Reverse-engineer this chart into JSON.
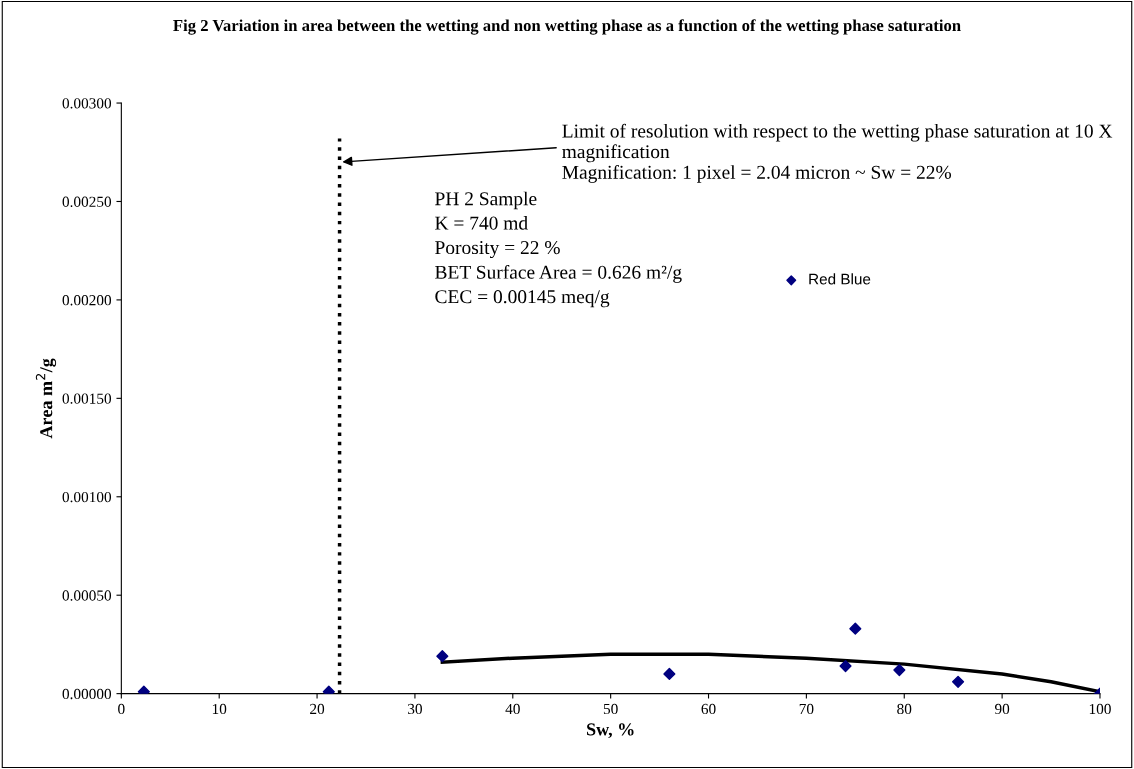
{
  "chart_data": {
    "type": "scatter",
    "title": "Fig 2 Variation in area between the wetting and non wetting phase as a function of the wetting phase saturation",
    "xlabel": "Sw, %",
    "ylabel": "Area m$^{2}$/g",
    "series": [
      {
        "name": "Red Blue",
        "color": "#000080",
        "marker": "diamond",
        "x": [
          2.3,
          21.2,
          32.8,
          56,
          74,
          75,
          79.5,
          85.5,
          100
        ],
        "values": [
          1e-05,
          1e-05,
          0.00019,
          0.0001,
          0.00014,
          0.00033,
          0.00012,
          6e-05,
          0
        ]
      },
      {
        "type": "line",
        "color": "#000000",
        "marker": "none",
        "x": [
          32.8,
          40,
          50,
          55,
          60,
          70,
          80,
          90,
          95,
          100
        ],
        "values": [
          0.00016,
          0.00018,
          0.0002,
          0.0002,
          0.0002,
          0.00018,
          0.00015,
          0.0001,
          6e-05,
          1e-05
        ]
      }
    ],
    "xlim": [
      0,
      100
    ],
    "xticks": [
      0,
      10,
      20,
      30,
      40,
      50,
      60,
      70,
      80,
      90,
      100
    ],
    "ylim": [
      0,
      0.003
    ],
    "yticks": [
      {
        "value": 0,
        "label": "0.00000"
      },
      {
        "value": 0.0005,
        "label": "0.00050"
      },
      {
        "value": 0.001,
        "label": "0.00100"
      },
      {
        "value": 0.0015,
        "label": "0.00150"
      },
      {
        "value": 0.002,
        "label": "0.00200"
      },
      {
        "value": 0.0025,
        "label": "0.00250"
      },
      {
        "value": 0.003,
        "label": "0.00300"
      }
    ],
    "ref_lines": [
      {
        "axis": "x",
        "value": 22.3,
        "color": "#000000",
        "line_style": "dotted",
        "label": "Limit of resolution with respect to the wetting phase saturation at 10 X magnification\nMagnification: 1 pixel = 2.04 micron ~ Sw = 22%"
      }
    ],
    "annotations": [
      "PH 2 Sample\nK = 740 md\nPorosity = 22 %\nBET Surface Area = 0.626 m²/g\nCEC = 0.00145 meq/g"
    ],
    "grid": false,
    "legend": "top right"
  }
}
